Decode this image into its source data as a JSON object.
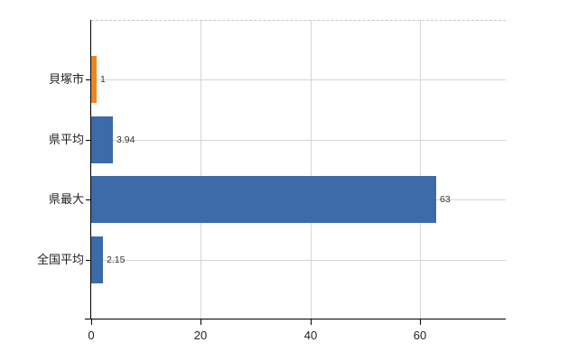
{
  "chart_data": {
    "type": "bar",
    "orientation": "horizontal",
    "title": "",
    "xlabel": "",
    "ylabel": "",
    "categories": [
      "貝塚市",
      "県平均",
      "県最大",
      "全国平均"
    ],
    "values": [
      1,
      3.94,
      63,
      2.15
    ],
    "value_labels": [
      "1",
      "3.94",
      "63",
      "2.15"
    ],
    "bar_colors": [
      "#EE8420",
      "#3C6BAA",
      "#3C6BAA",
      "#3C6BAA"
    ],
    "xlim": [
      0,
      75.7
    ],
    "xticks": [
      0,
      20,
      40,
      60
    ],
    "xtick_labels": [
      "0",
      "20",
      "40",
      "60"
    ],
    "grid": true,
    "legend": "none",
    "colors": {
      "accent_orange": "#EE8420",
      "accent_blue": "#3C6BAA",
      "axis": "#000000",
      "grid": "#d1d7d1",
      "top_border": "#c8c8c8",
      "label_text": "#222222",
      "value_text": "#333333",
      "background": "#ffffff"
    }
  }
}
